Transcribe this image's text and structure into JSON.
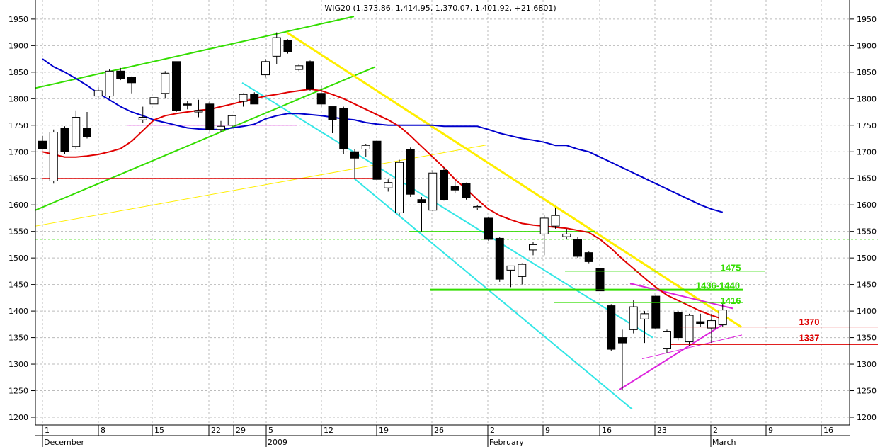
{
  "chart_data": {
    "type": "candlestick",
    "title": "WIG20 (1,373.86, 1,414.95, 1,370.07, 1,401.92, +21.6801)",
    "ylim": [
      1180,
      1980
    ],
    "y_ticks": [
      1200,
      1250,
      1300,
      1350,
      1400,
      1450,
      1500,
      1550,
      1600,
      1650,
      1700,
      1750,
      1800,
      1850,
      1900,
      1950
    ],
    "x_ticks": [
      "1",
      "8",
      "15",
      "22",
      "29",
      "5",
      "12",
      "19",
      "26",
      "2",
      "9",
      "16",
      "23",
      "2",
      "9",
      "16"
    ],
    "month_labels": [
      "December",
      "2009",
      "February",
      "March"
    ],
    "candles": [
      {
        "o": 1720,
        "h": 1730,
        "l": 1705,
        "c": 1705
      },
      {
        "o": 1645,
        "h": 1742,
        "l": 1640,
        "c": 1737
      },
      {
        "o": 1745,
        "h": 1748,
        "l": 1695,
        "c": 1700
      },
      {
        "o": 1710,
        "h": 1778,
        "l": 1705,
        "c": 1765
      },
      {
        "o": 1745,
        "h": 1775,
        "l": 1725,
        "c": 1728
      },
      {
        "o": 1805,
        "h": 1822,
        "l": 1800,
        "c": 1815
      },
      {
        "o": 1805,
        "h": 1855,
        "l": 1800,
        "c": 1852
      },
      {
        "o": 1852,
        "h": 1858,
        "l": 1835,
        "c": 1838
      },
      {
        "o": 1840,
        "h": 1842,
        "l": 1810,
        "c": 1830
      },
      {
        "o": 1760,
        "h": 1785,
        "l": 1755,
        "c": 1765
      },
      {
        "o": 1790,
        "h": 1805,
        "l": 1785,
        "c": 1802
      },
      {
        "o": 1810,
        "h": 1852,
        "l": 1800,
        "c": 1848
      },
      {
        "o": 1870,
        "h": 1870,
        "l": 1775,
        "c": 1778
      },
      {
        "o": 1790,
        "h": 1795,
        "l": 1780,
        "c": 1788
      },
      {
        "o": 1775,
        "h": 1798,
        "l": 1765,
        "c": 1778
      },
      {
        "o": 1790,
        "h": 1795,
        "l": 1738,
        "c": 1742
      },
      {
        "o": 1742,
        "h": 1758,
        "l": 1738,
        "c": 1748
      },
      {
        "o": 1750,
        "h": 1770,
        "l": 1745,
        "c": 1768
      },
      {
        "o": 1795,
        "h": 1810,
        "l": 1785,
        "c": 1808
      },
      {
        "o": 1808,
        "h": 1812,
        "l": 1790,
        "c": 1790
      },
      {
        "o": 1845,
        "h": 1875,
        "l": 1840,
        "c": 1870
      },
      {
        "o": 1880,
        "h": 1925,
        "l": 1865,
        "c": 1915
      },
      {
        "o": 1910,
        "h": 1912,
        "l": 1885,
        "c": 1888
      },
      {
        "o": 1855,
        "h": 1865,
        "l": 1852,
        "c": 1862
      },
      {
        "o": 1870,
        "h": 1872,
        "l": 1815,
        "c": 1818
      },
      {
        "o": 1810,
        "h": 1825,
        "l": 1785,
        "c": 1790
      },
      {
        "o": 1785,
        "h": 1782,
        "l": 1735,
        "c": 1760
      },
      {
        "o": 1782,
        "h": 1785,
        "l": 1695,
        "c": 1705
      },
      {
        "o": 1700,
        "h": 1705,
        "l": 1650,
        "c": 1688
      },
      {
        "o": 1705,
        "h": 1715,
        "l": 1690,
        "c": 1712
      },
      {
        "o": 1720,
        "h": 1725,
        "l": 1645,
        "c": 1648
      },
      {
        "o": 1632,
        "h": 1648,
        "l": 1625,
        "c": 1642
      },
      {
        "o": 1585,
        "h": 1685,
        "l": 1580,
        "c": 1680
      },
      {
        "o": 1705,
        "h": 1708,
        "l": 1615,
        "c": 1620
      },
      {
        "o": 1610,
        "h": 1615,
        "l": 1550,
        "c": 1604
      },
      {
        "o": 1590,
        "h": 1665,
        "l": 1588,
        "c": 1660
      },
      {
        "o": 1665,
        "h": 1670,
        "l": 1608,
        "c": 1610
      },
      {
        "o": 1635,
        "h": 1645,
        "l": 1622,
        "c": 1628
      },
      {
        "o": 1640,
        "h": 1642,
        "l": 1610,
        "c": 1613
      },
      {
        "o": 1595,
        "h": 1600,
        "l": 1590,
        "c": 1597
      },
      {
        "o": 1575,
        "h": 1578,
        "l": 1532,
        "c": 1535
      },
      {
        "o": 1537,
        "h": 1540,
        "l": 1455,
        "c": 1460
      },
      {
        "o": 1477,
        "h": 1485,
        "l": 1445,
        "c": 1485
      },
      {
        "o": 1465,
        "h": 1490,
        "l": 1450,
        "c": 1488
      },
      {
        "o": 1515,
        "h": 1530,
        "l": 1505,
        "c": 1525
      },
      {
        "o": 1545,
        "h": 1580,
        "l": 1505,
        "c": 1575
      },
      {
        "o": 1560,
        "h": 1595,
        "l": 1555,
        "c": 1580
      },
      {
        "o": 1540,
        "h": 1555,
        "l": 1535,
        "c": 1545
      },
      {
        "o": 1535,
        "h": 1540,
        "l": 1500,
        "c": 1503
      },
      {
        "o": 1510,
        "h": 1512,
        "l": 1490,
        "c": 1493
      },
      {
        "o": 1480,
        "h": 1485,
        "l": 1430,
        "c": 1438
      },
      {
        "o": 1410,
        "h": 1413,
        "l": 1325,
        "c": 1328
      },
      {
        "o": 1350,
        "h": 1365,
        "l": 1252,
        "c": 1340
      },
      {
        "o": 1365,
        "h": 1420,
        "l": 1358,
        "c": 1408
      },
      {
        "o": 1385,
        "h": 1400,
        "l": 1340,
        "c": 1395
      },
      {
        "o": 1428,
        "h": 1430,
        "l": 1365,
        "c": 1368
      },
      {
        "o": 1330,
        "h": 1365,
        "l": 1320,
        "c": 1362
      },
      {
        "o": 1398,
        "h": 1400,
        "l": 1345,
        "c": 1350
      },
      {
        "o": 1342,
        "h": 1395,
        "l": 1335,
        "c": 1392
      },
      {
        "o": 1380,
        "h": 1395,
        "l": 1370,
        "c": 1376
      },
      {
        "o": 1368,
        "h": 1395,
        "l": 1340,
        "c": 1382
      },
      {
        "o": 1374,
        "h": 1415,
        "l": 1370,
        "c": 1402
      }
    ],
    "blue_ma": [
      1875,
      1860,
      1850,
      1838,
      1825,
      1810,
      1798,
      1785,
      1775,
      1768,
      1760,
      1755,
      1750,
      1745,
      1743,
      1742,
      1742,
      1745,
      1748,
      1752,
      1762,
      1768,
      1772,
      1772,
      1770,
      1768,
      1765,
      1762,
      1760,
      1755,
      1752,
      1750,
      1750,
      1750,
      1750,
      1750,
      1748,
      1748,
      1748,
      1748,
      1742,
      1735,
      1730,
      1725,
      1722,
      1718,
      1712,
      1712,
      1705,
      1700,
      1690,
      1680,
      1670,
      1660,
      1650,
      1640,
      1630,
      1620,
      1610,
      1600,
      1592,
      1586
    ],
    "red_ma": [
      1700,
      1695,
      1690,
      1690,
      1692,
      1695,
      1700,
      1706,
      1720,
      1740,
      1760,
      1768,
      1772,
      1775,
      1778,
      1780,
      1785,
      1790,
      1795,
      1800,
      1805,
      1808,
      1812,
      1815,
      1818,
      1815,
      1808,
      1800,
      1790,
      1780,
      1770,
      1760,
      1748,
      1730,
      1710,
      1690,
      1670,
      1648,
      1630,
      1610,
      1592,
      1580,
      1572,
      1565,
      1562,
      1560,
      1558,
      1556,
      1552,
      1548,
      1535,
      1518,
      1498,
      1480,
      1462,
      1445,
      1430,
      1420,
      1410,
      1400,
      1392,
      1385
    ],
    "levels": [
      {
        "label": "1475",
        "value": 1475,
        "color": "#33dd00"
      },
      {
        "label": "1436-1440",
        "value": 1440,
        "color": "#33dd00"
      },
      {
        "label": "1416",
        "value": 1416,
        "color": "#33dd00"
      },
      {
        "label": "1370",
        "value": 1370,
        "color": "#dd0000"
      },
      {
        "label": "1337",
        "value": 1337,
        "color": "#dd0000"
      }
    ],
    "colors": {
      "ma_short": "#e00000",
      "ma_long": "#0000cc",
      "channel_up": "#33dd00",
      "channel_down": "#33e6e6",
      "trend_yellow": "#ffee00",
      "triangle": "#dd22dd",
      "support_red": "#dd0000"
    }
  }
}
